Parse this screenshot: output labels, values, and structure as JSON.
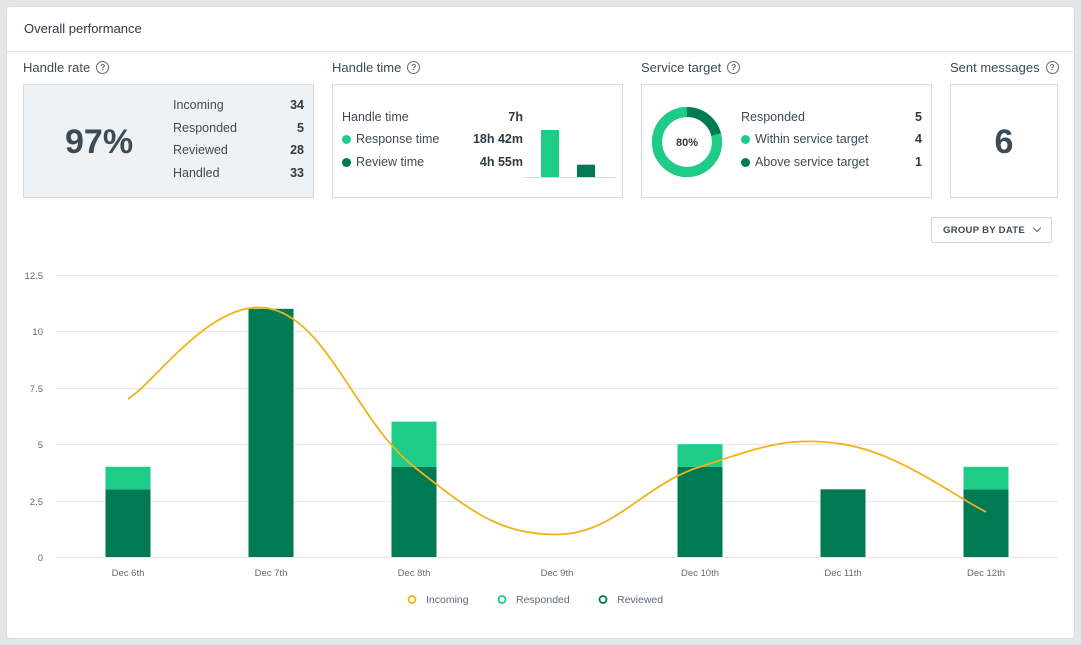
{
  "title": "Overall performance",
  "handle_rate": {
    "label": "Handle rate",
    "value": "97%",
    "rows": [
      {
        "label": "Incoming",
        "value": "34"
      },
      {
        "label": "Responded",
        "value": "5"
      },
      {
        "label": "Reviewed",
        "value": "28"
      },
      {
        "label": "Handled",
        "value": "33"
      }
    ]
  },
  "handle_time": {
    "label": "Handle time",
    "rows": [
      {
        "label": "Handle time",
        "value": "7h"
      },
      {
        "label": "Response time",
        "value": "18h 42m"
      },
      {
        "label": "Review time",
        "value": "4h 55m"
      }
    ],
    "mini_bars": [
      {
        "value": 18.7
      },
      {
        "value": 4.9
      }
    ]
  },
  "service_target": {
    "label": "Service target",
    "donut_value": "80%",
    "donut_fraction": 0.8,
    "rows": [
      {
        "label": "Responded",
        "value": "5"
      },
      {
        "label": "Within service target",
        "value": "4"
      },
      {
        "label": "Above service target",
        "value": "1"
      }
    ]
  },
  "sent_messages": {
    "label": "Sent messages",
    "value": "6"
  },
  "group_button": {
    "label": "GROUP BY DATE",
    "icon": "chevron-down-icon"
  },
  "colors": {
    "responded": "#1dcc86",
    "reviewed": "#007a52",
    "incoming": "#f0b31a",
    "text": "#3d4b57",
    "grid": "#e6e9eb"
  },
  "chart_data": {
    "type": "bar",
    "categories": [
      "Dec 6th",
      "Dec 7th",
      "Dec 8th",
      "Dec 9th",
      "Dec 10th",
      "Dec 11th",
      "Dec 12th"
    ],
    "ylim": [
      0,
      12.5
    ],
    "y_ticks": [
      "0",
      "2.5",
      "5",
      "7.5",
      "10",
      "12.5"
    ],
    "stacked": true,
    "series": [
      {
        "name": "Reviewed",
        "type": "bar",
        "values": [
          3,
          11,
          4,
          0,
          4,
          3,
          3
        ]
      },
      {
        "name": "Responded",
        "type": "bar",
        "values": [
          1,
          0,
          2,
          0,
          1,
          0,
          1
        ]
      },
      {
        "name": "Incoming",
        "type": "line",
        "values": [
          7,
          11,
          4,
          1,
          4,
          5,
          2
        ]
      }
    ],
    "legend": {
      "position": "bottom",
      "entries": [
        "Incoming",
        "Responded",
        "Reviewed"
      ]
    },
    "grid": true
  }
}
